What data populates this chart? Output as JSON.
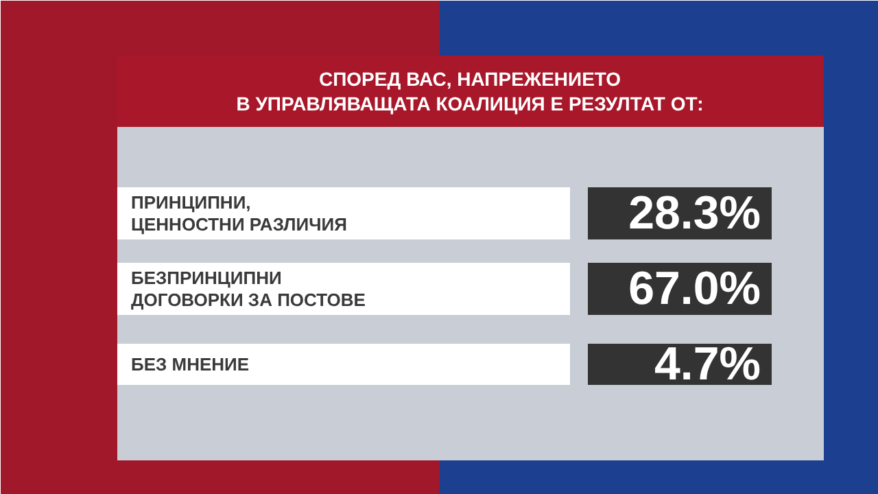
{
  "chart_data": {
    "type": "other",
    "title": "СПОРЕД ВАС, НАПРЕЖЕНИЕТО\nВ УПРАВЛЯВАЩАТА КОАЛИЦИЯ Е РЕЗУЛТАТ ОТ:",
    "categories": [
      "ПРИНЦИПНИ,\nЦЕННОСТНИ РАЗЛИЧИЯ",
      "БЕЗПРИНЦИПНИ\nДОГОВОРКИ ЗА ПОСТОВЕ",
      "БЕЗ МНЕНИЕ"
    ],
    "values": [
      28.3,
      67.0,
      4.7
    ],
    "value_labels": [
      "28.3%",
      "67.0%",
      "4.7%"
    ]
  }
}
